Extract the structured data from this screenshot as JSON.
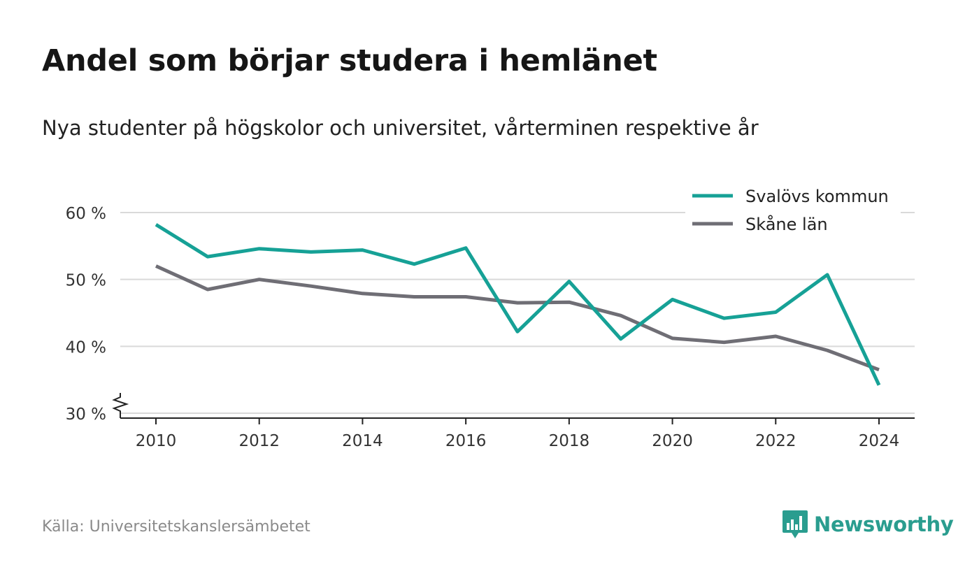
{
  "header": {
    "title": "Andel som börjar studera i hemlänet",
    "subtitle": "Nya studenter på högskolor och universitet, vårterminen respektive år"
  },
  "footer": {
    "source": "Källa: Universitetskanslersämbetet",
    "brand": "Newsworthy"
  },
  "colors": {
    "svalov": "#16a196",
    "skane": "#6f6e75",
    "grid": "#d9d9d9",
    "axis": "#222222",
    "brand": "#2a9d8f"
  },
  "icons": {
    "logo": "bar-chart-speech-bubble-icon",
    "axis_break": "zigzag-axis-break-icon"
  },
  "chart_data": {
    "type": "line",
    "x": [
      2010,
      2011,
      2012,
      2013,
      2014,
      2015,
      2016,
      2017,
      2018,
      2019,
      2020,
      2021,
      2022,
      2023,
      2024
    ],
    "series": [
      {
        "name": "Svalövs kommun",
        "color": "#16a196",
        "values": [
          58.2,
          53.4,
          54.6,
          54.1,
          54.4,
          52.3,
          54.7,
          42.2,
          49.7,
          41.1,
          47.0,
          44.2,
          45.1,
          50.7,
          34.2
        ]
      },
      {
        "name": "Skåne län",
        "color": "#6f6e75",
        "values": [
          52.0,
          48.5,
          50.0,
          49.0,
          47.9,
          47.4,
          47.4,
          46.5,
          46.6,
          44.6,
          41.2,
          40.6,
          41.5,
          39.4,
          36.5
        ]
      }
    ],
    "yticks": [
      30,
      40,
      50,
      60
    ],
    "ytick_labels": [
      "30 %",
      "40 %",
      "50 %",
      "60 %"
    ],
    "xticks": [
      2010,
      2012,
      2014,
      2016,
      2018,
      2020,
      2022,
      2024
    ],
    "xtick_labels": [
      "2010",
      "2012",
      "2014",
      "2016",
      "2018",
      "2020",
      "2022",
      "2024"
    ],
    "ylim": [
      30,
      60
    ],
    "xlabel": "",
    "ylabel": "",
    "grid": true,
    "legend_position": "top-right",
    "y_axis_break": true
  }
}
